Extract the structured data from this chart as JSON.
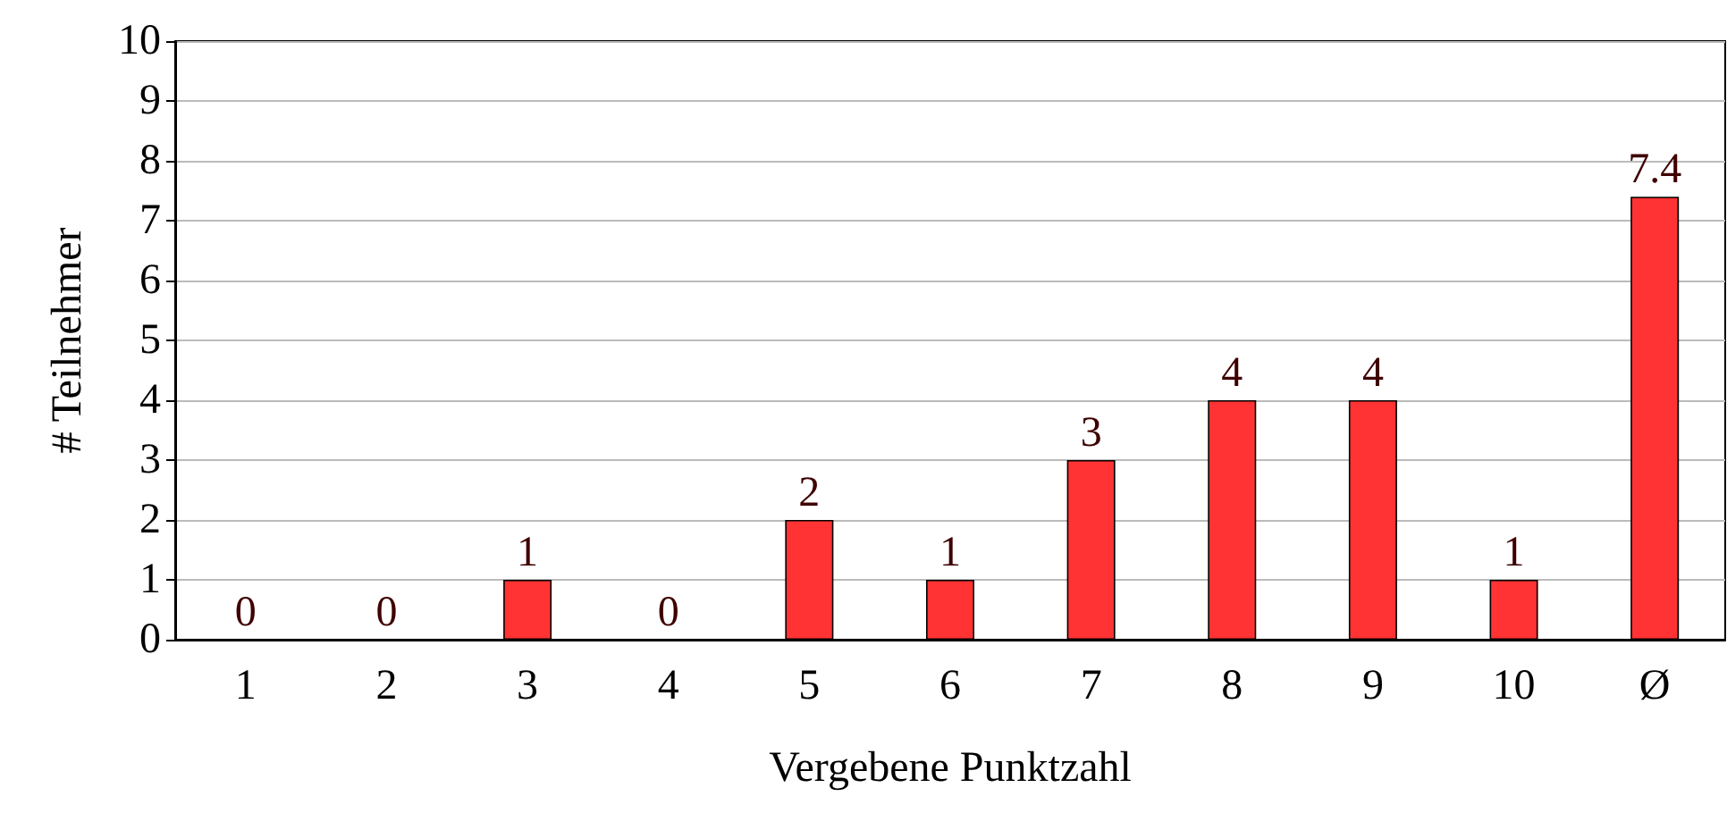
{
  "chart_data": {
    "type": "bar",
    "xlabel": "Vergebene Punktzahl",
    "ylabel": "# Teilnehmer",
    "categories": [
      "1",
      "2",
      "3",
      "4",
      "5",
      "6",
      "7",
      "8",
      "9",
      "10",
      "Ø"
    ],
    "values": [
      0,
      0,
      1,
      0,
      2,
      1,
      3,
      4,
      4,
      1,
      7.4
    ],
    "color": "#ff3333",
    "ylim": [
      0,
      10
    ],
    "yticks": [
      0,
      1,
      2,
      3,
      4,
      5,
      6,
      7,
      8,
      9,
      10
    ],
    "grid": "y",
    "data_labels": true
  }
}
